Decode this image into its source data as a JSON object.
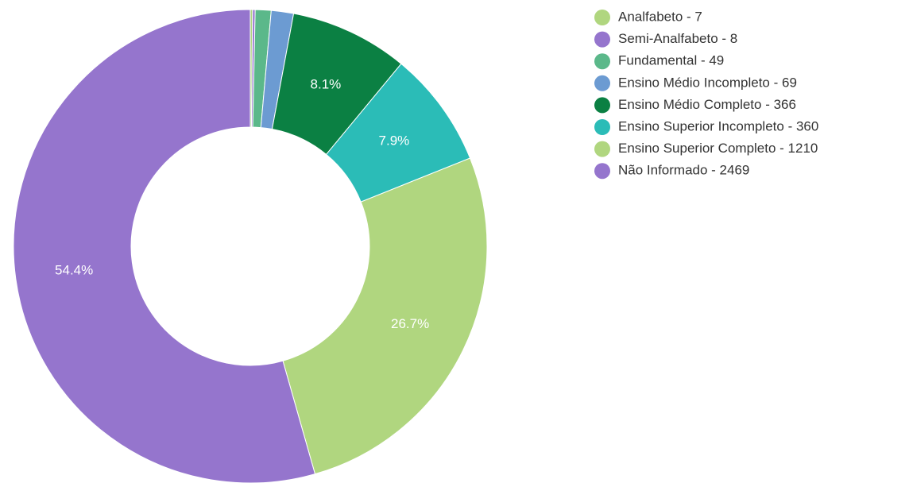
{
  "chart_data": {
    "type": "donut",
    "categories": [
      "Analfabeto - 7",
      "Semi-Analfabeto - 8",
      "Fundamental - 49",
      "Ensino Médio Incompleto - 69",
      "Ensino Médio Completo - 366",
      "Ensino Superior Incompleto - 360",
      "Ensino Superior Completo - 1210",
      "Não Informado - 2469"
    ],
    "values": [
      7,
      8,
      49,
      69,
      366,
      360,
      1210,
      2469
    ],
    "value_labels": [
      null,
      null,
      null,
      null,
      "8.1%",
      "7.9%",
      "26.7%",
      "54.4%"
    ],
    "colors": [
      "#b0d67f",
      "#9575cd",
      "#5bb88a",
      "#6c9bd2",
      "#0b8043",
      "#2bbcb7",
      "#b0d67f",
      "#9575cd"
    ],
    "legend": "right"
  }
}
